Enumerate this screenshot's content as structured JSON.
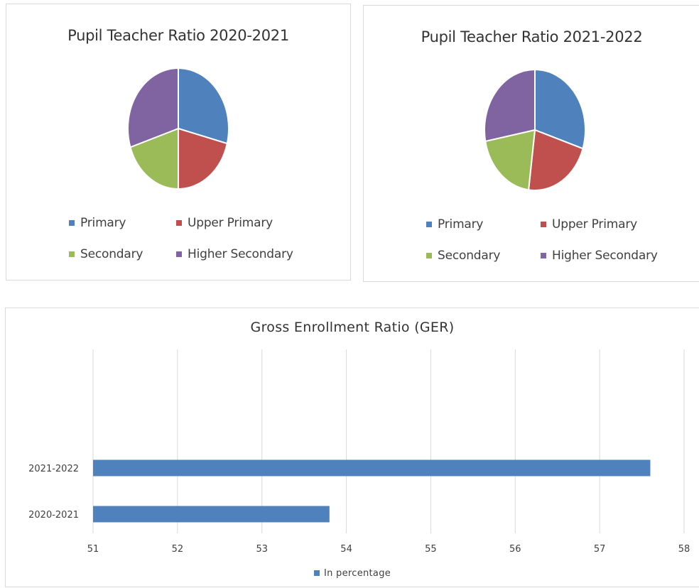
{
  "chart_data": [
    {
      "type": "pie",
      "title": "Pupil Teacher Ratio 2020-2021",
      "categories": [
        "Primary",
        "Upper Primary",
        "Secondary",
        "Higher Secondary"
      ],
      "values": [
        29,
        21,
        20,
        30
      ],
      "colors": [
        "#4f81bd",
        "#c0504d",
        "#9bbb59",
        "#8064a2"
      ],
      "legend_position": "bottom"
    },
    {
      "type": "pie",
      "title": "Pupil Teacher Ratio 2021-2022",
      "categories": [
        "Primary",
        "Upper Primary",
        "Secondary",
        "Higher Secondary"
      ],
      "values": [
        30,
        22,
        20,
        28
      ],
      "colors": [
        "#4f81bd",
        "#c0504d",
        "#9bbb59",
        "#8064a2"
      ],
      "legend_position": "bottom"
    },
    {
      "type": "bar",
      "orientation": "horizontal",
      "title": "Gross Enrollment Ratio (GER)",
      "categories": [
        "2021-2022",
        "2020-2021"
      ],
      "series": [
        {
          "name": "In percentage",
          "values": [
            57.6,
            53.8
          ],
          "color": "#4f81bd"
        }
      ],
      "xlim": [
        51,
        58
      ],
      "xticks": [
        51,
        52,
        53,
        54,
        55,
        56,
        57,
        58
      ],
      "grid": true,
      "legend_position": "bottom"
    }
  ]
}
